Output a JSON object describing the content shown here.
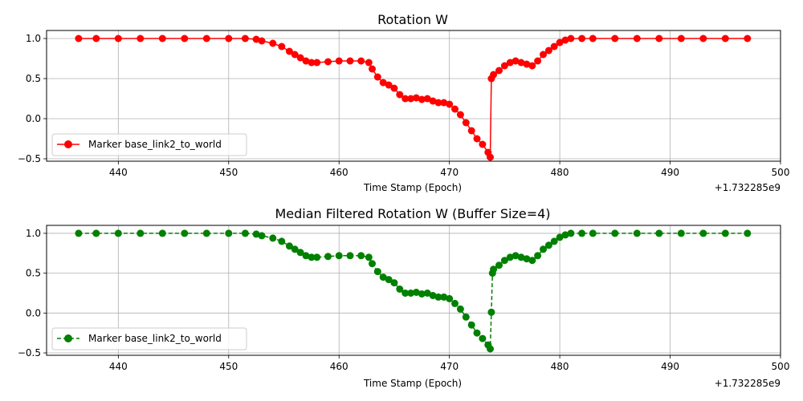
{
  "chart_data": [
    {
      "type": "line",
      "title": "Rotation W",
      "xlabel": "Time Stamp (Epoch)",
      "ylabel": "",
      "x_offset_label": "+1.732285e9",
      "xlim": [
        433.5,
        500
      ],
      "ylim": [
        -0.53,
        1.1
      ],
      "xticks": [
        440,
        450,
        460,
        470,
        480,
        490,
        500
      ],
      "xtick_labels": [
        "440",
        "450",
        "460",
        "470",
        "480",
        "490",
        "500"
      ],
      "yticks": [
        -0.5,
        0.0,
        0.5,
        1.0
      ],
      "ytick_labels": [
        "−0.5",
        "0.0",
        "0.5",
        "1.0"
      ],
      "grid": true,
      "legend_position": "lower-left",
      "series": [
        {
          "name": "Marker base_link2_to_world",
          "color": "#ff0000",
          "line_style": "solid",
          "marker": "circle",
          "x": [
            436.4,
            438,
            440,
            442,
            444,
            446,
            448,
            450,
            451.5,
            452.5,
            453,
            454,
            454.8,
            455.5,
            456,
            456.5,
            457,
            457.5,
            458,
            459,
            460,
            461,
            462,
            462.7,
            463,
            463.5,
            464,
            464.5,
            465,
            465.5,
            466,
            466.5,
            467,
            467.5,
            468,
            468.5,
            469,
            469.5,
            470,
            470.5,
            471,
            471.5,
            472,
            472.5,
            473,
            473.5,
            473.7,
            473.8,
            474,
            474.5,
            475,
            475.5,
            476,
            476.5,
            477,
            477.5,
            478,
            478.5,
            479,
            479.5,
            480,
            480.5,
            481,
            482,
            483,
            485,
            487,
            489,
            491,
            493,
            495,
            497
          ],
          "y": [
            1.0,
            1.0,
            1.0,
            1.0,
            1.0,
            1.0,
            1.0,
            1.0,
            1.0,
            0.99,
            0.97,
            0.94,
            0.9,
            0.84,
            0.8,
            0.76,
            0.72,
            0.7,
            0.7,
            0.71,
            0.72,
            0.72,
            0.72,
            0.7,
            0.62,
            0.52,
            0.45,
            0.42,
            0.38,
            0.3,
            0.25,
            0.25,
            0.26,
            0.24,
            0.25,
            0.22,
            0.2,
            0.2,
            0.18,
            0.12,
            0.05,
            -0.05,
            -0.15,
            -0.25,
            -0.32,
            -0.42,
            -0.48,
            0.5,
            0.55,
            0.6,
            0.66,
            0.7,
            0.72,
            0.7,
            0.68,
            0.66,
            0.72,
            0.8,
            0.85,
            0.9,
            0.95,
            0.98,
            1.0,
            1.0,
            1.0,
            1.0,
            1.0,
            1.0,
            1.0,
            1.0,
            1.0,
            1.0
          ]
        }
      ]
    },
    {
      "type": "line",
      "title": "Median Filtered Rotation W (Buffer Size=4)",
      "xlabel": "Time Stamp (Epoch)",
      "ylabel": "",
      "x_offset_label": "+1.732285e9",
      "xlim": [
        433.5,
        500
      ],
      "ylim": [
        -0.53,
        1.1
      ],
      "xticks": [
        440,
        450,
        460,
        470,
        480,
        490,
        500
      ],
      "xtick_labels": [
        "440",
        "450",
        "460",
        "470",
        "480",
        "490",
        "500"
      ],
      "yticks": [
        -0.5,
        0.0,
        0.5,
        1.0
      ],
      "ytick_labels": [
        "−0.5",
        "0.0",
        "0.5",
        "1.0"
      ],
      "grid": true,
      "legend_position": "lower-left",
      "series": [
        {
          "name": "Marker base_link2_to_world",
          "color": "#008000",
          "line_style": "dashed",
          "marker": "circle",
          "x": [
            436.4,
            438,
            440,
            442,
            444,
            446,
            448,
            450,
            451.5,
            452.5,
            453,
            454,
            454.8,
            455.5,
            456,
            456.5,
            457,
            457.5,
            458,
            459,
            460,
            461,
            462,
            462.7,
            463,
            463.5,
            464,
            464.5,
            465,
            465.5,
            466,
            466.5,
            467,
            467.5,
            468,
            468.5,
            469,
            469.5,
            470,
            470.5,
            471,
            471.5,
            472,
            472.5,
            473,
            473.5,
            473.7,
            473.8,
            473.9,
            474,
            474.5,
            475,
            475.5,
            476,
            476.5,
            477,
            477.5,
            478,
            478.5,
            479,
            479.5,
            480,
            480.5,
            481,
            482,
            483,
            485,
            487,
            489,
            491,
            493,
            495,
            497
          ],
          "y": [
            1.0,
            1.0,
            1.0,
            1.0,
            1.0,
            1.0,
            1.0,
            1.0,
            1.0,
            0.99,
            0.97,
            0.94,
            0.9,
            0.84,
            0.8,
            0.76,
            0.72,
            0.7,
            0.7,
            0.71,
            0.72,
            0.72,
            0.72,
            0.7,
            0.62,
            0.52,
            0.45,
            0.42,
            0.38,
            0.3,
            0.25,
            0.25,
            0.26,
            0.24,
            0.25,
            0.22,
            0.2,
            0.2,
            0.18,
            0.12,
            0.05,
            -0.05,
            -0.15,
            -0.25,
            -0.32,
            -0.4,
            -0.45,
            0.01,
            0.5,
            0.55,
            0.6,
            0.66,
            0.7,
            0.72,
            0.7,
            0.68,
            0.66,
            0.72,
            0.8,
            0.85,
            0.9,
            0.95,
            0.98,
            1.0,
            1.0,
            1.0,
            1.0,
            1.0,
            1.0,
            1.0,
            1.0,
            1.0,
            1.0
          ]
        }
      ]
    }
  ]
}
